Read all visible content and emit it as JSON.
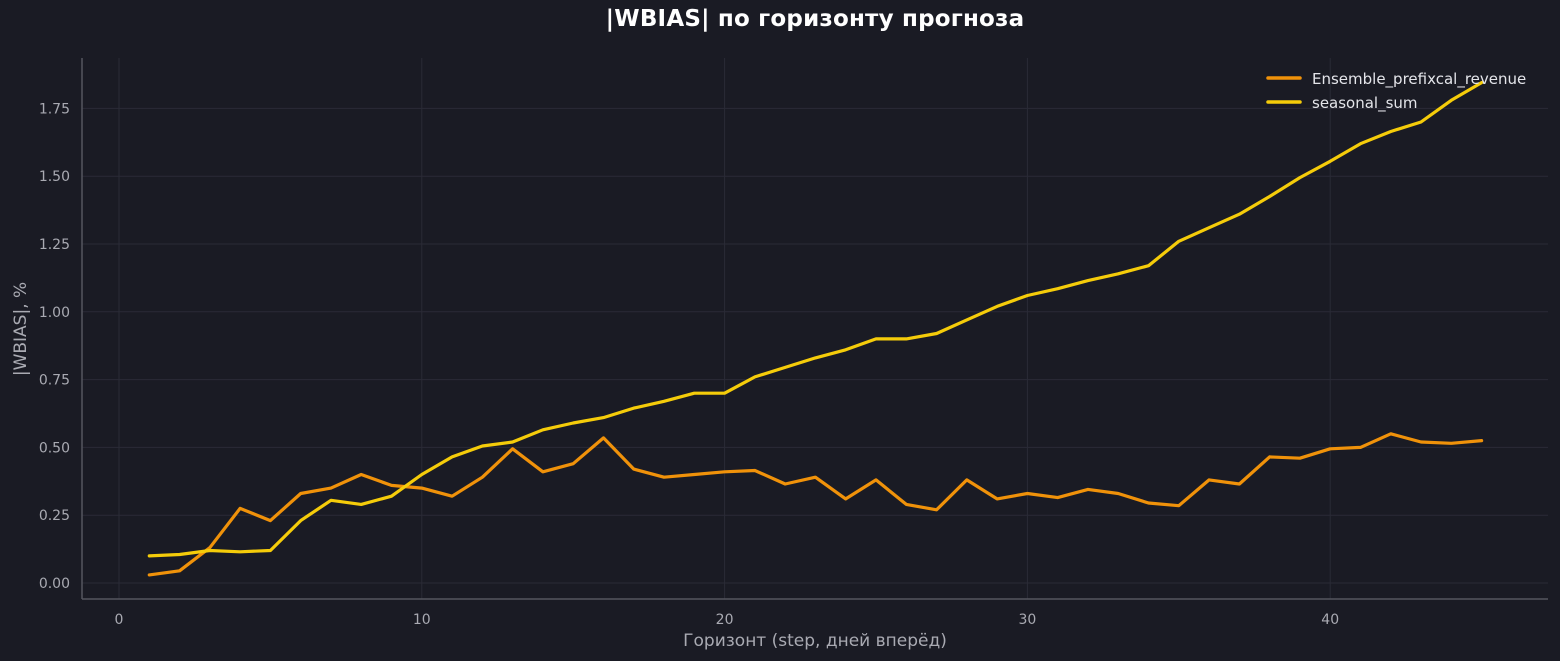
{
  "chart_data": {
    "type": "line",
    "title": "|WBIAS| по горизонту прогноза",
    "xlabel": "Горизонт (step, дней вперёд)",
    "ylabel": "|WBIAS|, %",
    "xlim": [
      -1.2,
      47.5
    ],
    "ylim": [
      -0.06,
      1.93
    ],
    "xticks": [
      0,
      10,
      20,
      30,
      40
    ],
    "xtick_labels": [
      "0",
      "10",
      "20",
      "30",
      "40"
    ],
    "yticks": [
      0.0,
      0.25,
      0.5,
      0.75,
      1.0,
      1.25,
      1.5,
      1.75
    ],
    "ytick_labels": [
      "0.00",
      "0.25",
      "0.50",
      "0.75",
      "1.00",
      "1.25",
      "1.50",
      "1.75"
    ],
    "grid": true,
    "legend_position": "upper right",
    "x": [
      1,
      2,
      3,
      4,
      5,
      6,
      7,
      8,
      9,
      10,
      11,
      12,
      13,
      14,
      15,
      16,
      17,
      18,
      19,
      20,
      21,
      22,
      23,
      24,
      25,
      26,
      27,
      28,
      29,
      30,
      31,
      32,
      33,
      34,
      35,
      36,
      37,
      38,
      39,
      40,
      41,
      42,
      43,
      44,
      45
    ],
    "series": [
      {
        "name": "Ensemble_prefixcal_revenue",
        "color": "#f0920a",
        "values": [
          0.03,
          0.045,
          0.13,
          0.275,
          0.23,
          0.33,
          0.35,
          0.4,
          0.36,
          0.35,
          0.32,
          0.39,
          0.495,
          0.41,
          0.44,
          0.535,
          0.42,
          0.39,
          0.4,
          0.41,
          0.415,
          0.365,
          0.39,
          0.31,
          0.38,
          0.29,
          0.27,
          0.38,
          0.31,
          0.33,
          0.315,
          0.345,
          0.33,
          0.295,
          0.285,
          0.38,
          0.365,
          0.465,
          0.46,
          0.495,
          0.5,
          0.55,
          0.52,
          0.515,
          0.525
        ]
      },
      {
        "name": "seasonal_sum",
        "color": "#f5cc0a",
        "values": [
          0.1,
          0.105,
          0.12,
          0.115,
          0.12,
          0.23,
          0.305,
          0.29,
          0.32,
          0.4,
          0.465,
          0.505,
          0.52,
          0.565,
          0.59,
          0.61,
          0.645,
          0.67,
          0.7,
          0.7,
          0.76,
          0.795,
          0.83,
          0.86,
          0.9,
          0.9,
          0.92,
          0.97,
          1.02,
          1.06,
          1.085,
          1.115,
          1.14,
          1.17,
          1.26,
          1.31,
          1.36,
          1.425,
          1.495,
          1.555,
          1.62,
          1.665,
          1.7,
          1.78,
          1.845
        ]
      }
    ]
  }
}
